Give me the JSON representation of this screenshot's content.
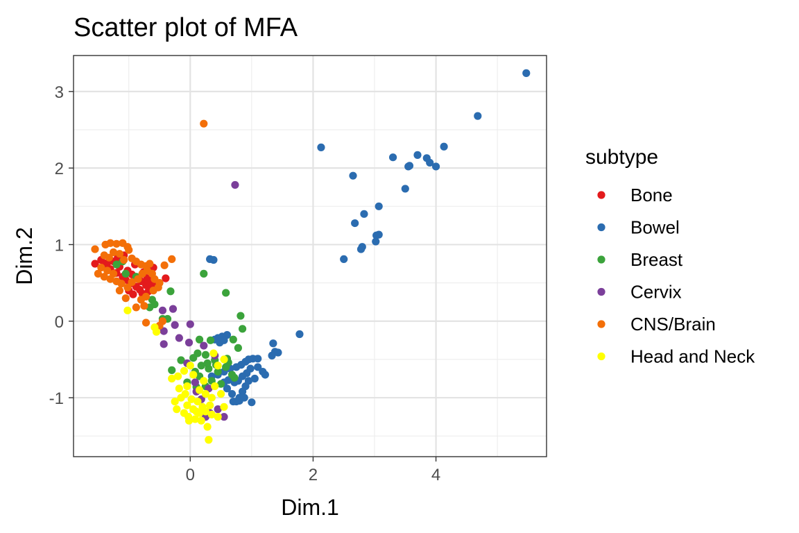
{
  "chart_data": {
    "type": "scatter",
    "title": "Scatter plot of MFA",
    "xlabel": "Dim.1",
    "ylabel": "Dim.2",
    "xlim": [
      -1.9,
      5.8
    ],
    "ylim": [
      -1.77,
      3.47
    ],
    "x_ticks": [
      0,
      2,
      4
    ],
    "y_ticks": [
      -1,
      0,
      1,
      2,
      3
    ],
    "x_tick_labels": [
      "0",
      "2",
      "4"
    ],
    "y_tick_labels": [
      "-1",
      "0",
      "1",
      "2",
      "3"
    ],
    "grid": true,
    "legend": {
      "title": "subtype",
      "position": "right"
    },
    "series": [
      {
        "name": "Bone",
        "color": "#e31a1c",
        "points": [
          [
            -1.55,
            0.75
          ],
          [
            -1.45,
            0.8
          ],
          [
            -1.4,
            0.72
          ],
          [
            -1.35,
            0.76
          ],
          [
            -1.3,
            0.68
          ],
          [
            -1.25,
            0.78
          ],
          [
            -1.2,
            0.63
          ],
          [
            -1.15,
            0.71
          ],
          [
            -1.1,
            0.58
          ],
          [
            -1.05,
            0.54
          ],
          [
            -1.02,
            0.66
          ],
          [
            -0.98,
            0.49
          ],
          [
            -0.95,
            0.61
          ],
          [
            -0.9,
            0.74
          ],
          [
            -0.88,
            0.45
          ],
          [
            -0.85,
            0.57
          ],
          [
            -0.82,
            0.41
          ],
          [
            -0.8,
            0.52
          ],
          [
            -0.76,
            0.64
          ],
          [
            -0.72,
            0.47
          ],
          [
            -0.7,
            0.56
          ],
          [
            -0.68,
            0.39
          ],
          [
            -0.65,
            0.51
          ],
          [
            -0.62,
            0.43
          ],
          [
            -0.6,
            0.7
          ],
          [
            -0.55,
            0.48
          ],
          [
            -0.4,
            0.56
          ],
          [
            -1.0,
            0.4
          ],
          [
            -0.93,
            0.35
          ],
          [
            -1.18,
            0.83
          ],
          [
            -1.08,
            0.86
          ],
          [
            -0.78,
            0.36
          ]
        ]
      },
      {
        "name": "Bowel",
        "color": "#2b6cb0",
        "points": [
          [
            5.47,
            3.24
          ],
          [
            4.68,
            2.68
          ],
          [
            4.13,
            2.28
          ],
          [
            4.0,
            2.02
          ],
          [
            3.9,
            2.07
          ],
          [
            3.85,
            2.13
          ],
          [
            3.7,
            2.17
          ],
          [
            3.57,
            2.03
          ],
          [
            3.55,
            2.02
          ],
          [
            3.5,
            1.73
          ],
          [
            3.3,
            2.14
          ],
          [
            3.07,
            1.5
          ],
          [
            3.07,
            1.13
          ],
          [
            3.03,
            1.12
          ],
          [
            3.02,
            1.04
          ],
          [
            2.83,
            1.4
          ],
          [
            2.8,
            0.97
          ],
          [
            2.78,
            0.94
          ],
          [
            2.68,
            1.28
          ],
          [
            2.65,
            1.9
          ],
          [
            2.5,
            0.81
          ],
          [
            2.13,
            2.27
          ],
          [
            0.32,
            0.81
          ],
          [
            0.38,
            0.8
          ],
          [
            1.78,
            -0.17
          ],
          [
            1.35,
            -0.29
          ],
          [
            1.43,
            -0.41
          ],
          [
            1.38,
            -0.4
          ],
          [
            1.33,
            -0.45
          ],
          [
            1.1,
            -0.49
          ],
          [
            1.02,
            -0.49
          ],
          [
            0.95,
            -0.5
          ],
          [
            0.9,
            -0.53
          ],
          [
            0.83,
            -0.57
          ],
          [
            0.75,
            -0.6
          ],
          [
            0.65,
            -0.62
          ],
          [
            0.55,
            -0.66
          ],
          [
            0.45,
            -0.7
          ],
          [
            0.35,
            -0.72
          ],
          [
            0.6,
            -0.18
          ],
          [
            0.52,
            -0.2
          ],
          [
            0.45,
            -0.22
          ],
          [
            0.4,
            -0.24
          ],
          [
            0.55,
            -0.25
          ],
          [
            0.48,
            -0.28
          ],
          [
            1.22,
            -0.7
          ],
          [
            1.18,
            -0.66
          ],
          [
            1.1,
            -0.6
          ],
          [
            1.05,
            -0.75
          ],
          [
            0.95,
            -0.78
          ],
          [
            0.9,
            -0.85
          ],
          [
            0.85,
            -0.92
          ],
          [
            0.8,
            -1.0
          ],
          [
            0.75,
            -1.05
          ],
          [
            0.7,
            -1.05
          ],
          [
            0.8,
            -1.04
          ],
          [
            0.88,
            -1.0
          ],
          [
            1.0,
            -1.06
          ],
          [
            0.68,
            -0.95
          ],
          [
            0.6,
            -0.88
          ],
          [
            0.72,
            -0.8
          ],
          [
            0.62,
            -0.77
          ],
          [
            0.92,
            -0.68
          ],
          [
            0.98,
            -0.62
          ],
          [
            0.85,
            -0.72
          ],
          [
            0.78,
            -0.78
          ],
          [
            0.55,
            -0.8
          ]
        ]
      },
      {
        "name": "Breast",
        "color": "#3ba33b",
        "points": [
          [
            0.22,
            0.62
          ],
          [
            0.58,
            0.37
          ],
          [
            -0.32,
            0.39
          ],
          [
            0.82,
            0.07
          ],
          [
            -0.37,
            0.03
          ],
          [
            -0.45,
            0.03
          ],
          [
            0.85,
            -0.1
          ],
          [
            0.33,
            -0.25
          ],
          [
            0.15,
            -0.24
          ],
          [
            0.7,
            -0.24
          ],
          [
            0.78,
            -0.35
          ],
          [
            0.12,
            -0.42
          ],
          [
            0.25,
            -0.44
          ],
          [
            0.05,
            -0.48
          ],
          [
            0.4,
            -0.51
          ],
          [
            0.6,
            -0.49
          ],
          [
            -0.15,
            -0.51
          ],
          [
            0.18,
            -0.58
          ],
          [
            0.3,
            -0.62
          ],
          [
            0.45,
            -0.66
          ],
          [
            0.08,
            -0.66
          ],
          [
            -0.3,
            -0.64
          ],
          [
            0.15,
            -0.72
          ],
          [
            0.35,
            -0.78
          ],
          [
            0.5,
            -0.82
          ],
          [
            0.25,
            -0.85
          ],
          [
            0.1,
            -0.86
          ],
          [
            -0.05,
            -0.8
          ],
          [
            0.42,
            -0.57
          ],
          [
            0.58,
            -0.6
          ],
          [
            0.68,
            -0.7
          ],
          [
            0.72,
            -0.74
          ],
          [
            -0.62,
            0.28
          ],
          [
            -0.58,
            0.22
          ],
          [
            -0.66,
            0.18
          ],
          [
            -1.2,
            0.74
          ],
          [
            -1.1,
            0.78
          ],
          [
            -1.05,
            0.62
          ],
          [
            -0.88,
            0.58
          ],
          [
            0.28,
            -0.55
          ],
          [
            0.62,
            -0.54
          ]
        ]
      },
      {
        "name": "Cervix",
        "color": "#7b3f9a",
        "points": [
          [
            0.73,
            1.78
          ],
          [
            -0.28,
            0.16
          ],
          [
            -0.45,
            0.14
          ],
          [
            -0.25,
            -0.05
          ],
          [
            -0.43,
            -0.13
          ],
          [
            -0.43,
            -0.3
          ],
          [
            -0.18,
            -0.22
          ],
          [
            0.0,
            -0.04
          ],
          [
            -0.02,
            -0.28
          ],
          [
            -0.05,
            -0.55
          ],
          [
            0.08,
            -0.8
          ],
          [
            0.3,
            -0.88
          ],
          [
            0.45,
            -1.15
          ],
          [
            0.55,
            -1.25
          ],
          [
            0.18,
            -1.02
          ],
          [
            0.32,
            -1.2
          ],
          [
            0.4,
            -0.45
          ],
          [
            0.22,
            -0.32
          ],
          [
            0.1,
            -0.92
          ],
          [
            0.25,
            -1.25
          ]
        ]
      },
      {
        "name": "CNS/Brain",
        "color": "#f36f08",
        "points": [
          [
            0.22,
            2.58
          ],
          [
            -1.55,
            0.94
          ],
          [
            -1.38,
            1.0
          ],
          [
            -1.3,
            1.02
          ],
          [
            -1.2,
            1.01
          ],
          [
            -1.1,
            1.02
          ],
          [
            -1.02,
            0.97
          ],
          [
            -1.0,
            0.93
          ],
          [
            -1.25,
            0.9
          ],
          [
            -1.15,
            0.88
          ],
          [
            -1.4,
            0.86
          ],
          [
            -1.32,
            0.83
          ],
          [
            -1.08,
            0.8
          ],
          [
            -0.95,
            0.82
          ],
          [
            -0.88,
            0.78
          ],
          [
            -0.8,
            0.74
          ],
          [
            -0.72,
            0.72
          ],
          [
            -0.66,
            0.75
          ],
          [
            -0.42,
            0.73
          ],
          [
            -0.3,
            0.81
          ],
          [
            -1.45,
            0.7
          ],
          [
            -1.35,
            0.66
          ],
          [
            -1.25,
            0.62
          ],
          [
            -1.5,
            0.62
          ],
          [
            -1.4,
            0.58
          ],
          [
            -1.3,
            0.55
          ],
          [
            -1.2,
            0.52
          ],
          [
            -1.12,
            0.49
          ],
          [
            -1.02,
            0.44
          ],
          [
            -0.95,
            0.51
          ],
          [
            -0.85,
            0.55
          ],
          [
            -0.78,
            0.62
          ],
          [
            -0.7,
            0.66
          ],
          [
            -0.62,
            0.62
          ],
          [
            -0.58,
            0.55
          ],
          [
            -0.5,
            0.5
          ],
          [
            -0.52,
            0.44
          ],
          [
            -0.6,
            0.4
          ],
          [
            -0.72,
            0.32
          ],
          [
            -0.8,
            0.28
          ],
          [
            -0.75,
            0.2
          ],
          [
            -0.88,
            0.18
          ],
          [
            -1.05,
            0.3
          ],
          [
            -1.15,
            0.4
          ],
          [
            -0.72,
            -0.02
          ],
          [
            -0.45,
            0.0
          ],
          [
            -0.5,
            -0.06
          ]
        ]
      },
      {
        "name": "Head and Neck",
        "color": "#ffff00",
        "points": [
          [
            -1.02,
            0.14
          ],
          [
            -0.58,
            -0.08
          ],
          [
            -0.55,
            -0.14
          ],
          [
            0.38,
            -0.42
          ],
          [
            0.45,
            -0.58
          ],
          [
            0.55,
            -0.5
          ],
          [
            -0.1,
            -0.65
          ],
          [
            -0.3,
            -0.75
          ],
          [
            -0.2,
            -0.72
          ],
          [
            0.0,
            -0.58
          ],
          [
            0.05,
            -0.7
          ],
          [
            -0.05,
            -0.85
          ],
          [
            0.15,
            -0.9
          ],
          [
            0.25,
            -0.95
          ],
          [
            0.35,
            -1.0
          ],
          [
            -0.08,
            -0.95
          ],
          [
            -0.25,
            -1.05
          ],
          [
            -0.15,
            -1.0
          ],
          [
            -0.05,
            -1.1
          ],
          [
            0.05,
            -1.15
          ],
          [
            0.15,
            -1.2
          ],
          [
            0.25,
            -1.18
          ],
          [
            0.35,
            -1.22
          ],
          [
            0.45,
            -1.25
          ],
          [
            0.55,
            -1.12
          ],
          [
            -0.1,
            -1.2
          ],
          [
            -0.03,
            -1.25
          ],
          [
            0.08,
            -1.28
          ],
          [
            0.18,
            -1.3
          ],
          [
            -0.02,
            -1.3
          ],
          [
            0.3,
            -1.55
          ],
          [
            0.28,
            -1.38
          ],
          [
            0.12,
            -1.05
          ],
          [
            0.4,
            -0.85
          ],
          [
            0.22,
            -0.78
          ],
          [
            -0.18,
            -0.88
          ],
          [
            -0.22,
            -1.15
          ],
          [
            0.5,
            -0.95
          ],
          [
            0.02,
            -1.02
          ],
          [
            0.2,
            -1.12
          ],
          [
            0.32,
            -1.1
          ],
          [
            0.1,
            -1.18
          ]
        ]
      }
    ]
  }
}
